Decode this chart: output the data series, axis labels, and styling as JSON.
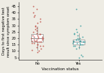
{
  "no_median": 20,
  "no_q1": 17,
  "no_q3": 23,
  "no_whisker_low": 11,
  "no_whisker_high": 29,
  "no_outliers": [
    9,
    10,
    30,
    32,
    33,
    35,
    37,
    38,
    40,
    43,
    45
  ],
  "no_dots_y": [
    11,
    12,
    13,
    14,
    14,
    15,
    15,
    16,
    16,
    17,
    17,
    17,
    18,
    18,
    18,
    19,
    19,
    19,
    20,
    20,
    20,
    20,
    21,
    21,
    21,
    22,
    22,
    23,
    23,
    24,
    25,
    26,
    27,
    28,
    29
  ],
  "yes_median": 17,
  "yes_q1": 15,
  "yes_q3": 19,
  "yes_whisker_low": 12,
  "yes_whisker_high": 24,
  "yes_outliers": [
    5,
    6,
    7,
    25,
    27,
    30,
    43
  ],
  "yes_dots_y": [
    12,
    13,
    14,
    14,
    15,
    15,
    15,
    16,
    16,
    16,
    17,
    17,
    17,
    17,
    18,
    18,
    18,
    18,
    19,
    19,
    19,
    20,
    20,
    21,
    22,
    23,
    24
  ],
  "no_color": "#c0524a",
  "yes_color": "#3a9fa0",
  "box_edgecolor": "#888888",
  "ylabel": "Days to first negative test\nresult since symptom onset",
  "xlabel": "Vaccination status",
  "xtick_labels": [
    "No",
    "Yes"
  ],
  "ytick_vals": [
    5,
    10,
    15,
    20,
    25,
    30,
    35,
    40,
    45
  ],
  "ylim": [
    3,
    48
  ],
  "ylabel_fontsize": 3.8,
  "xlabel_fontsize": 4.2,
  "tick_fontsize": 3.8,
  "dot_size": 2,
  "dot_alpha": 0.85,
  "box_width": 0.28,
  "background_color": "#eeece4"
}
